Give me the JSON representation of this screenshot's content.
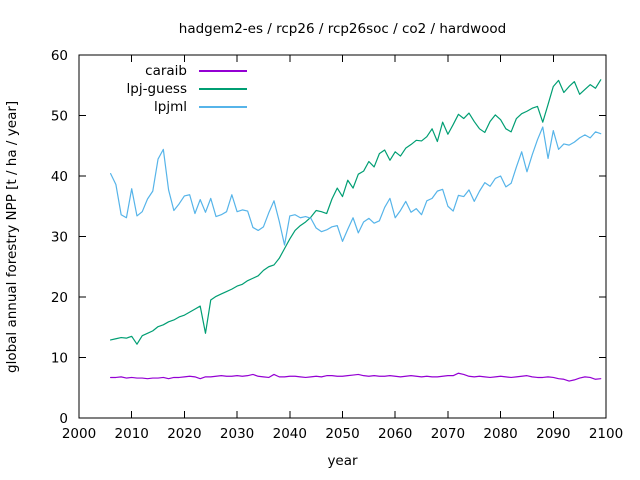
{
  "chart_data": {
    "type": "line",
    "title": "hadgem2-es / rcp26 / rcp26soc / co2 / hardwood",
    "xlabel": "year",
    "ylabel": "global annual forestry NPP [t / ha / year]",
    "xlim": [
      2000,
      2100
    ],
    "ylim": [
      0,
      60
    ],
    "xticks": [
      2000,
      2010,
      2020,
      2030,
      2040,
      2050,
      2060,
      2070,
      2080,
      2090,
      2100
    ],
    "yticks": [
      0,
      10,
      20,
      30,
      40,
      50,
      60
    ],
    "grid": false,
    "legend_position": "top-left-inside",
    "x_start": 2006,
    "x_step": 1,
    "series": [
      {
        "name": "caraib",
        "color": "#9400d3",
        "values": [
          6.7,
          6.7,
          6.8,
          6.6,
          6.7,
          6.6,
          6.6,
          6.5,
          6.6,
          6.6,
          6.7,
          6.5,
          6.7,
          6.7,
          6.8,
          6.9,
          6.8,
          6.5,
          6.8,
          6.8,
          6.9,
          7.0,
          6.9,
          6.9,
          7.0,
          6.9,
          7.0,
          7.2,
          6.9,
          6.8,
          6.7,
          7.2,
          6.8,
          6.8,
          6.9,
          6.9,
          6.8,
          6.7,
          6.8,
          6.9,
          6.8,
          7.0,
          7.0,
          6.9,
          6.9,
          7.0,
          7.1,
          7.2,
          7.0,
          6.9,
          7.0,
          6.9,
          6.9,
          7.0,
          6.9,
          6.8,
          6.9,
          7.0,
          6.9,
          6.8,
          6.9,
          6.8,
          6.8,
          6.9,
          7.0,
          7.0,
          7.4,
          7.2,
          6.9,
          6.8,
          6.9,
          6.8,
          6.7,
          6.8,
          6.9,
          6.8,
          6.7,
          6.8,
          6.9,
          7.0,
          6.8,
          6.7,
          6.7,
          6.8,
          6.7,
          6.5,
          6.4,
          6.1,
          6.3,
          6.6,
          6.8,
          6.7,
          6.4,
          6.5
        ]
      },
      {
        "name": "lpj-guess",
        "color": "#009e73",
        "values": [
          12.9,
          13.1,
          13.3,
          13.2,
          13.5,
          12.2,
          13.6,
          14.0,
          14.4,
          15.1,
          15.4,
          15.9,
          16.2,
          16.7,
          17.0,
          17.5,
          18.0,
          18.5,
          14.0,
          19.5,
          20.1,
          20.5,
          20.9,
          21.3,
          21.8,
          22.1,
          22.7,
          23.1,
          23.5,
          24.4,
          25.0,
          25.3,
          26.4,
          28.0,
          29.6,
          31.0,
          31.8,
          32.4,
          33.2,
          34.3,
          34.1,
          33.8,
          36.2,
          38.0,
          36.6,
          39.3,
          38.0,
          40.3,
          40.8,
          42.4,
          41.5,
          43.7,
          44.3,
          42.6,
          44.0,
          43.3,
          44.6,
          45.2,
          45.9,
          45.8,
          46.5,
          47.8,
          45.7,
          48.9,
          46.9,
          48.5,
          50.2,
          49.5,
          50.4,
          49.0,
          47.8,
          47.2,
          49.0,
          50.1,
          49.3,
          47.8,
          47.3,
          49.5,
          50.3,
          50.7,
          51.2,
          51.5,
          48.9,
          51.8,
          54.8,
          55.8,
          53.8,
          54.8,
          55.6,
          53.5,
          54.3,
          55.1,
          54.5,
          55.9
        ]
      },
      {
        "name": "lpjml",
        "color": "#56b4e9",
        "values": [
          40.4,
          38.6,
          33.6,
          33.1,
          37.9,
          33.4,
          34.1,
          36.2,
          37.5,
          42.8,
          44.4,
          37.7,
          34.3,
          35.4,
          36.7,
          36.9,
          33.8,
          36.1,
          34.0,
          36.3,
          33.3,
          33.6,
          34.1,
          36.9,
          34.1,
          34.4,
          34.2,
          31.5,
          31.0,
          31.6,
          33.9,
          35.9,
          32.5,
          28.6,
          33.4,
          33.6,
          33.1,
          33.3,
          33.0,
          31.4,
          30.8,
          31.1,
          31.6,
          31.8,
          29.2,
          31.2,
          33.1,
          30.6,
          32.4,
          33.0,
          32.2,
          32.6,
          34.8,
          36.3,
          33.1,
          34.3,
          35.8,
          34.0,
          34.6,
          33.6,
          35.9,
          36.3,
          37.5,
          37.8,
          35.0,
          34.2,
          36.8,
          36.6,
          37.7,
          35.8,
          37.5,
          38.9,
          38.3,
          39.6,
          40.0,
          38.2,
          38.8,
          41.5,
          44.0,
          40.7,
          43.5,
          46.0,
          48.1,
          42.9,
          47.5,
          44.4,
          45.3,
          45.1,
          45.6,
          46.3,
          46.8,
          46.3,
          47.3,
          47.0
        ]
      }
    ]
  },
  "legend": {
    "entries": [
      {
        "label": "caraib"
      },
      {
        "label": "lpj-guess"
      },
      {
        "label": "lpjml"
      }
    ]
  }
}
